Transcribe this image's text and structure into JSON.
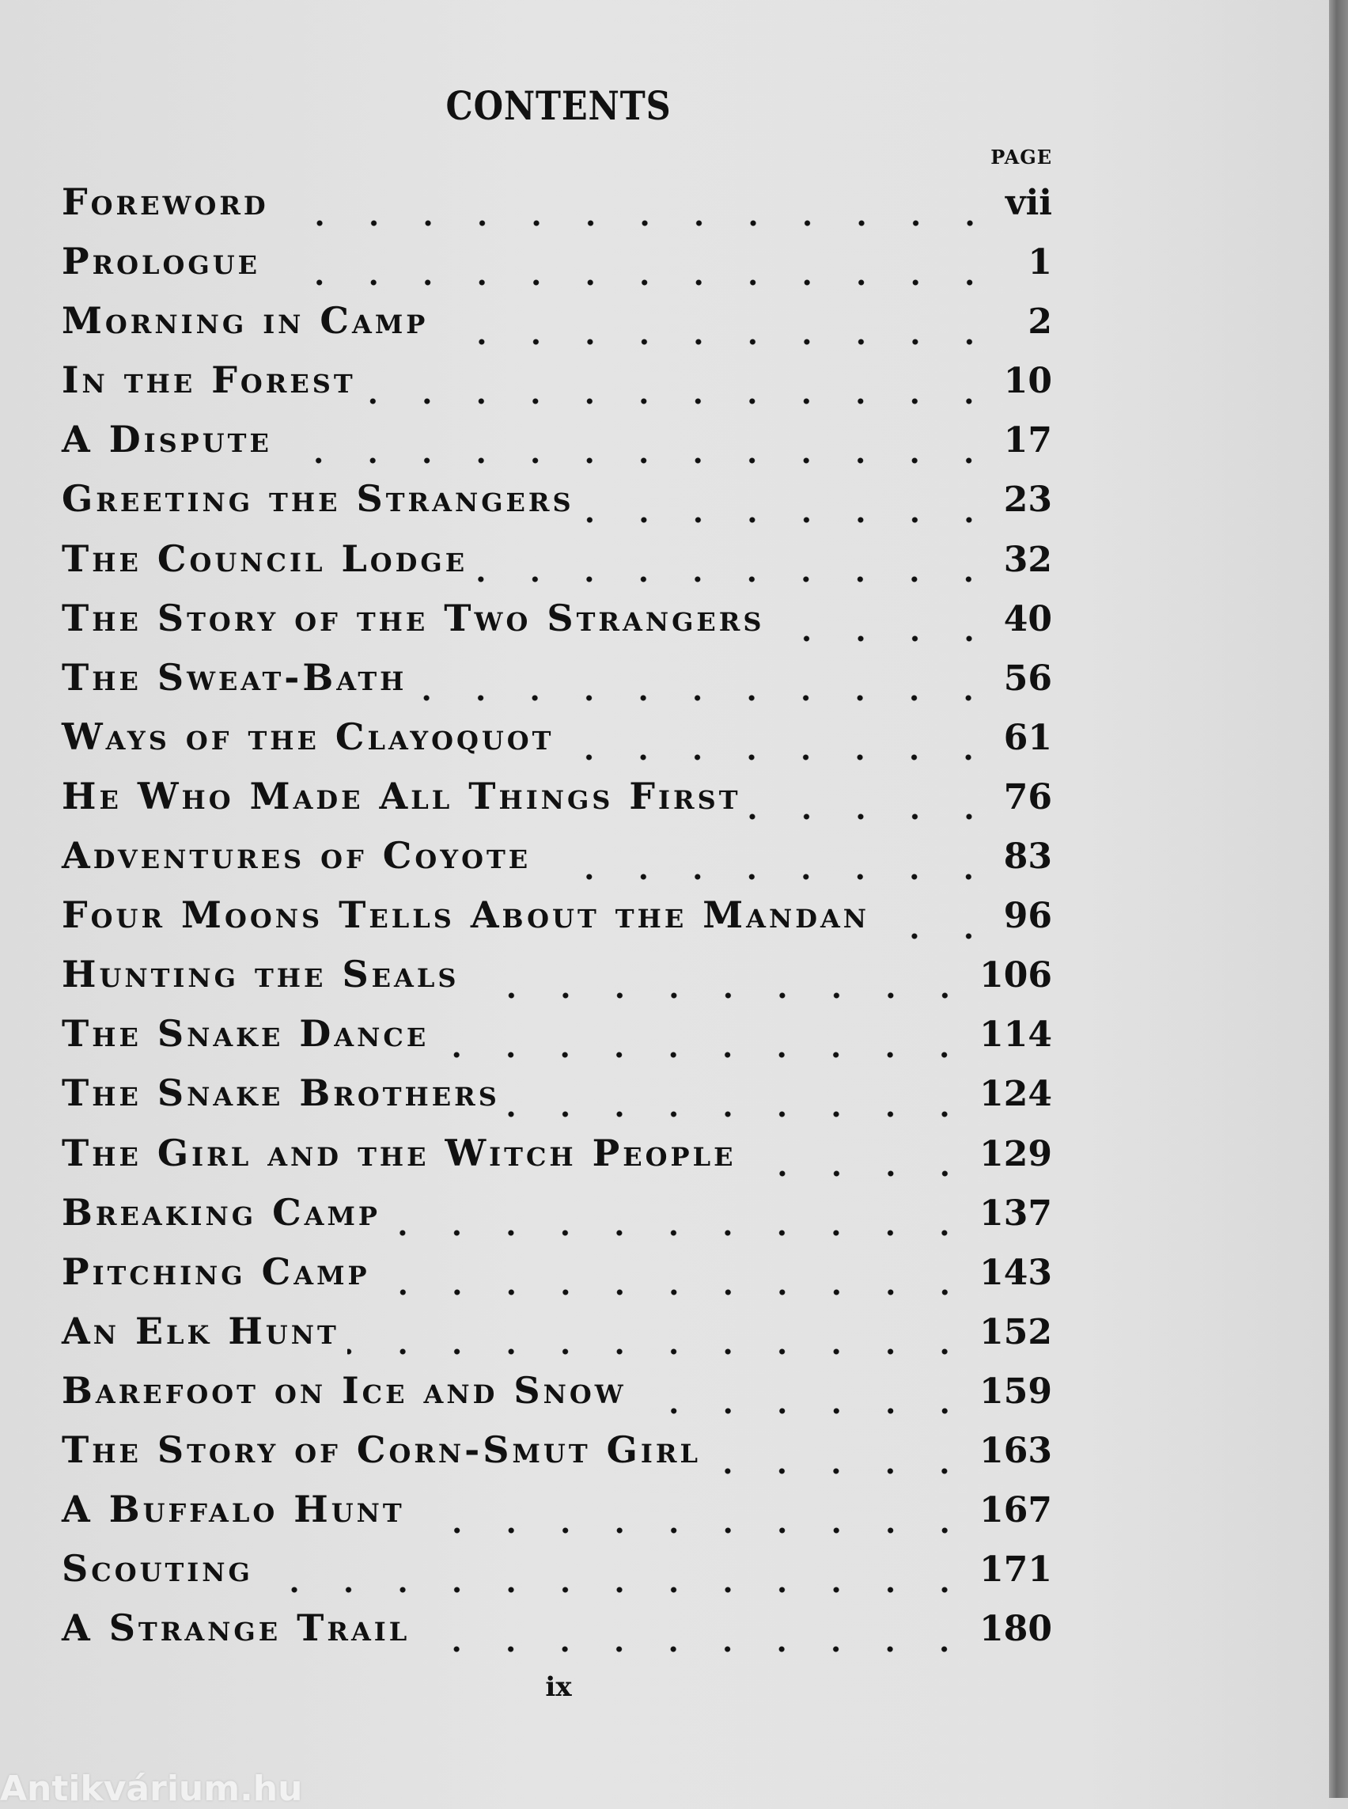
{
  "title": "CONTENTS",
  "page_header": "PAGE",
  "entries": [
    {
      "title": "Foreword",
      "page": "vii"
    },
    {
      "title": "Prologue",
      "page": "1"
    },
    {
      "title": "Morning in Camp",
      "page": "2"
    },
    {
      "title": "In the Forest",
      "page": "10"
    },
    {
      "title": "A Dispute",
      "page": "17"
    },
    {
      "title": "Greeting the Strangers",
      "page": "23"
    },
    {
      "title": "The Council Lodge",
      "page": "32"
    },
    {
      "title": "The Story of the Two Strangers",
      "page": "40"
    },
    {
      "title": "The Sweat-Bath",
      "page": "56"
    },
    {
      "title": "Ways of the Clayoquot",
      "page": "61"
    },
    {
      "title": "He Who Made All Things First",
      "page": "76"
    },
    {
      "title": "Adventures of Coyote",
      "page": "83"
    },
    {
      "title": "Four Moons Tells About the Mandan",
      "page": "96"
    },
    {
      "title": "Hunting the Seals",
      "page": "106"
    },
    {
      "title": "The Snake Dance",
      "page": "114"
    },
    {
      "title": "The Snake Brothers",
      "page": "124"
    },
    {
      "title": "The Girl and the Witch People",
      "page": "129"
    },
    {
      "title": "Breaking Camp",
      "page": "137"
    },
    {
      "title": "Pitching Camp",
      "page": "143"
    },
    {
      "title": "An Elk Hunt",
      "page": "152"
    },
    {
      "title": "Barefoot on Ice and Snow",
      "page": "159"
    },
    {
      "title": "The Story of Corn-Smut Girl",
      "page": "163"
    },
    {
      "title": "A Buffalo Hunt",
      "page": "167"
    },
    {
      "title": "Scouting",
      "page": "171"
    },
    {
      "title": "A Strange Trail",
      "page": "180"
    }
  ],
  "folio": "ix",
  "watermark": "Antikvárium.hu"
}
